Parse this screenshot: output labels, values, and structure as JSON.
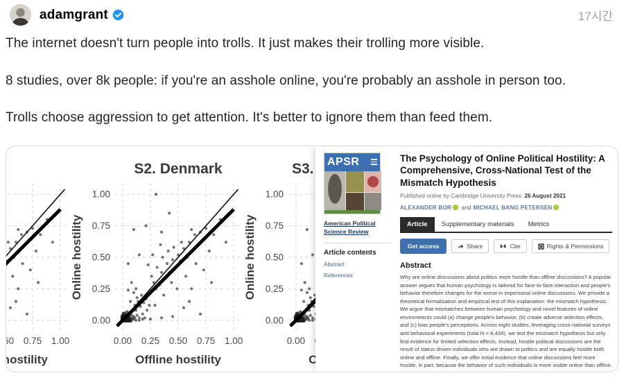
{
  "post": {
    "username": "adamgrant",
    "verified": true,
    "timestamp": "17시간",
    "paragraphs": [
      "The internet doesn't turn people into trolls. It just makes their trolling more visible.",
      "8 studies, over 8k people: if you're an asshole online, you're probably an asshole in person too.",
      "Trolls choose aggression to get attention. It's better to ignore them than feed them."
    ]
  },
  "chart_data": {
    "type": "scatter",
    "xlabel": "Offline hostility",
    "ylabel": "Online hostility",
    "xlim": [
      0,
      1
    ],
    "ylim": [
      0,
      1
    ],
    "grid": true,
    "tick_values": [
      0,
      0.25,
      0.5,
      0.75,
      1
    ],
    "tick_labels": [
      "0.00",
      "0.25",
      "0.50",
      "0.75",
      "1.00"
    ],
    "panels": [
      {
        "title": "",
        "note": "left plot, only right portion visible"
      },
      {
        "title": "S2. Denmark",
        "note": "full plot visible"
      },
      {
        "title": "S3.",
        "note": "right plot, only left portion visible; title truncated"
      }
    ],
    "identity_line": {
      "from": [
        0,
        0
      ],
      "to": [
        1,
        1
      ]
    },
    "regression_line": {
      "from": [
        0,
        0
      ],
      "to": [
        1,
        0.88
      ]
    },
    "points": [
      [
        0.0,
        0.0
      ],
      [
        0.01,
        0.0
      ],
      [
        0.02,
        0.0
      ],
      [
        0.03,
        0.0
      ],
      [
        0.04,
        0.0
      ],
      [
        0.05,
        0.0
      ],
      [
        0.06,
        0.0
      ],
      [
        0.07,
        0.0
      ],
      [
        0.0,
        0.01
      ],
      [
        0.0,
        0.02
      ],
      [
        0.0,
        0.03
      ],
      [
        0.01,
        0.01
      ],
      [
        0.02,
        0.01
      ],
      [
        0.03,
        0.02
      ],
      [
        0.01,
        0.03
      ],
      [
        0.04,
        0.01
      ],
      [
        0.02,
        0.04
      ],
      [
        0.05,
        0.02
      ],
      [
        0.03,
        0.05
      ],
      [
        0.06,
        0.03
      ],
      [
        0.01,
        0.05
      ],
      [
        0.04,
        0.04
      ],
      [
        0.05,
        0.06
      ],
      [
        0.02,
        0.02
      ],
      [
        0.03,
        0.01
      ],
      [
        0.06,
        0.05
      ],
      [
        0.07,
        0.02
      ],
      [
        0.02,
        0.06
      ],
      [
        0.08,
        0.04
      ],
      [
        0.05,
        0.01
      ],
      [
        0.01,
        0.02
      ],
      [
        0.09,
        0.01
      ],
      [
        0.04,
        0.07
      ],
      [
        0.07,
        0.06
      ],
      [
        0.03,
        0.03
      ],
      [
        0.06,
        0.01
      ],
      [
        0.08,
        0.01
      ],
      [
        0.1,
        0.01
      ],
      [
        0.12,
        0.0
      ],
      [
        0.15,
        0.0
      ],
      [
        0.18,
        0.01
      ],
      [
        0.11,
        0.02
      ],
      [
        0.13,
        0.04
      ],
      [
        0.09,
        0.02
      ],
      [
        0.1,
        0.03
      ],
      [
        0.12,
        0.08
      ],
      [
        0.15,
        0.02
      ],
      [
        0.11,
        0.12
      ],
      [
        0.14,
        0.15
      ],
      [
        0.18,
        0.05
      ],
      [
        0.16,
        0.11
      ],
      [
        0.2,
        0.02
      ],
      [
        0.13,
        0.18
      ],
      [
        0.19,
        0.14
      ],
      [
        0.1,
        0.22
      ],
      [
        0.22,
        0.08
      ],
      [
        0.17,
        0.2
      ],
      [
        0.21,
        0.17
      ],
      [
        0.12,
        0.25
      ],
      [
        0.24,
        0.12
      ],
      [
        0.07,
        0.15
      ],
      [
        0.05,
        0.24
      ],
      [
        0.08,
        0.3
      ],
      [
        0.25,
        0.22
      ],
      [
        0.28,
        0.3
      ],
      [
        0.3,
        0.25
      ],
      [
        0.26,
        0.35
      ],
      [
        0.33,
        0.28
      ],
      [
        0.35,
        0.38
      ],
      [
        0.31,
        0.42
      ],
      [
        0.38,
        0.33
      ],
      [
        0.4,
        0.45
      ],
      [
        0.36,
        0.5
      ],
      [
        0.42,
        0.38
      ],
      [
        0.45,
        0.48
      ],
      [
        0.41,
        0.55
      ],
      [
        0.48,
        0.42
      ],
      [
        0.5,
        0.52
      ],
      [
        0.46,
        0.58
      ],
      [
        0.52,
        0.47
      ],
      [
        0.55,
        0.57
      ],
      [
        0.44,
        0.3
      ],
      [
        0.37,
        0.2
      ],
      [
        0.29,
        0.12
      ],
      [
        0.49,
        0.25
      ],
      [
        0.57,
        0.35
      ],
      [
        0.53,
        0.62
      ],
      [
        0.58,
        0.5
      ],
      [
        0.34,
        0.6
      ],
      [
        0.27,
        0.52
      ],
      [
        0.23,
        0.44
      ],
      [
        0.6,
        0.62
      ],
      [
        0.63,
        0.55
      ],
      [
        0.65,
        0.68
      ],
      [
        0.62,
        0.72
      ],
      [
        0.68,
        0.6
      ],
      [
        0.7,
        0.7
      ],
      [
        0.72,
        0.64
      ],
      [
        0.75,
        0.73
      ],
      [
        0.66,
        0.45
      ],
      [
        0.78,
        0.55
      ],
      [
        0.82,
        0.68
      ],
      [
        0.85,
        0.75
      ],
      [
        0.88,
        0.8
      ],
      [
        0.73,
        0.4
      ],
      [
        0.8,
        0.3
      ],
      [
        0.3,
        1.0
      ],
      [
        0.42,
        0.85
      ],
      [
        0.1,
        0.72
      ],
      [
        0.21,
        0.75
      ],
      [
        0.35,
        0.7
      ],
      [
        0.15,
        0.52
      ],
      [
        0.05,
        0.45
      ],
      [
        0.93,
        0.62
      ],
      [
        0.62,
        0.25
      ],
      [
        0.55,
        0.1
      ],
      [
        0.7,
        0.05
      ],
      [
        0.45,
        0.03
      ],
      [
        0.35,
        0.02
      ],
      [
        0.25,
        0.01
      ],
      [
        0.6,
        0.15
      ]
    ]
  },
  "paper": {
    "journal": {
      "masthead": "APSR",
      "name": "American Political Science Review"
    },
    "sidebar": {
      "contents_heading": "Article contents",
      "links": [
        "Abstract",
        "References"
      ]
    },
    "title": "The Psychology of Online Political Hostility: A Comprehensive, Cross-National Test of the Mismatch Hypothesis",
    "published_prefix": "Published online by Cambridge University Press:",
    "published_date": "26 August 2021",
    "authors": [
      {
        "name": "ALEXANDER BOR"
      },
      {
        "name": "MICHAEL BANG PETERSEN"
      }
    ],
    "authors_separator": "and",
    "tabs": [
      "Article",
      "Supplementary materials",
      "Metrics"
    ],
    "active_tab": "Article",
    "buttons": {
      "get_access": "Get access",
      "share": "Share",
      "cite": "Cite",
      "rights": "Rights & Permissions"
    },
    "abstract_heading": "Abstract",
    "abstract_text": "Why are online discussions about politics more hostile than offline discussions? A popular answer argues that human psychology is tailored for face-to-face interaction and people's behavior therefore changes for the worse in impersonal online discussions. We provide a theoretical formalization and empirical test of this explanation: the mismatch hypothesis. We argue that mismatches between human psychology and novel features of online environments could (a) change people's behavior, (b) create adverse selection effects, and (c) bias people's perceptions. Across eight studies, leveraging cross-national surveys and behavioral experiments (total N = 8,434), we test the mismatch hypothesis but only find evidence for limited selection effects. Instead, hostile political discussions are the result of status-driven individuals who are drawn to politics and are equally hostile both online and offline. Finally, we offer initial evidence that online discussions feel more hostile, in part, because the behavior of such individuals is more visible online than offline."
  },
  "colors": {
    "verified_badge": "#2693f2",
    "get_access_button": "#3e70ad",
    "active_tab": "#2b2b2b",
    "orcid_green": "#a6ce39",
    "cover_blue": "#3d6fb4",
    "cover_green": "#5a8f3c",
    "timestamp_gray": "#9f9f9f"
  }
}
